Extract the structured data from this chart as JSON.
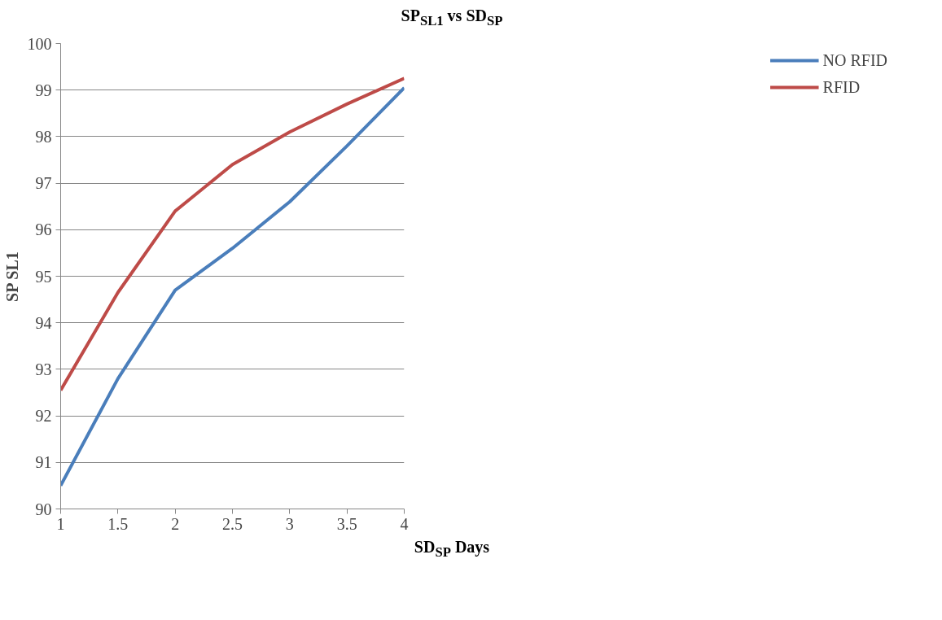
{
  "chart_data": {
    "type": "line",
    "title": "SP$_{SL1}$ vs SD$_{SP}$",
    "xlabel": "SD$_{SP}$ Days",
    "ylabel": "SP SL1",
    "x": [
      1,
      1.5,
      2,
      2.5,
      3,
      3.5,
      4
    ],
    "series": [
      {
        "name": "NO RFID",
        "color": "#4a7ebb",
        "values": [
          90.5,
          92.8,
          94.7,
          95.6,
          96.6,
          97.8,
          99.05
        ]
      },
      {
        "name": "RFID",
        "color": "#be4b48",
        "values": [
          92.55,
          94.65,
          96.4,
          97.4,
          98.1,
          98.7,
          99.25
        ]
      }
    ],
    "xlim": [
      1,
      4
    ],
    "xticks": [
      1,
      1.5,
      2,
      2.5,
      3,
      3.5,
      4
    ],
    "ylim": [
      90,
      100
    ],
    "yticks": [
      90,
      91,
      92,
      93,
      94,
      95,
      96,
      97,
      98,
      99,
      100
    ],
    "grid": "y",
    "legend": "right",
    "marker": "none",
    "line_style": "solid"
  }
}
